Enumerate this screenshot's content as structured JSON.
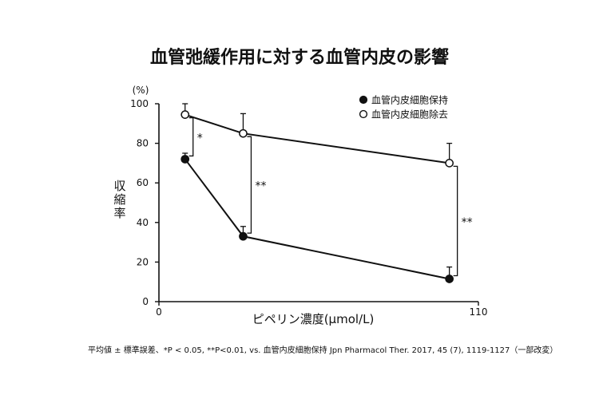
{
  "chart_data": {
    "type": "line",
    "title": "血管弛緩作用に対する血管内皮の影響",
    "xlabel": "ピペリン濃度(µmol/L)",
    "ylabel": "収縮率",
    "yunit": "(%)",
    "xlim": [
      0,
      110
    ],
    "ylim": [
      0,
      100
    ],
    "x_ticks": [
      "0",
      "110"
    ],
    "y_ticks": [
      "0",
      "20",
      "40",
      "60",
      "80",
      "100"
    ],
    "grid": false,
    "legend_position": "top-right",
    "series": [
      {
        "name": "血管内皮細胞保持",
        "marker": "filled-circle",
        "points": [
          {
            "x": 9,
            "y": 72,
            "err": 3
          },
          {
            "x": 29,
            "y": 33,
            "err": 5
          },
          {
            "x": 100,
            "y": 11.5,
            "err": 6
          }
        ]
      },
      {
        "name": "血管内皮細胞除去",
        "marker": "open-circle",
        "points": [
          {
            "x": 9,
            "y": 94.5,
            "err": 5.5
          },
          {
            "x": 29,
            "y": 85,
            "err": 10
          },
          {
            "x": 100,
            "y": 70,
            "err": 10
          }
        ]
      }
    ],
    "annotations": [
      {
        "x": 9,
        "from": 72,
        "to": 94.5,
        "label": "*"
      },
      {
        "x": 29,
        "from": 33,
        "to": 85,
        "label": "**"
      },
      {
        "x": 100,
        "from": 11.5,
        "to": 70,
        "label": "**"
      }
    ],
    "footnote": "平均値 ± 標準誤差、*P < 0.05, **P<0.01, vs. 血管内皮細胞保持 Jpn Pharmacol Ther. 2017, 45 (7), 1119-1127（一部改変）"
  }
}
